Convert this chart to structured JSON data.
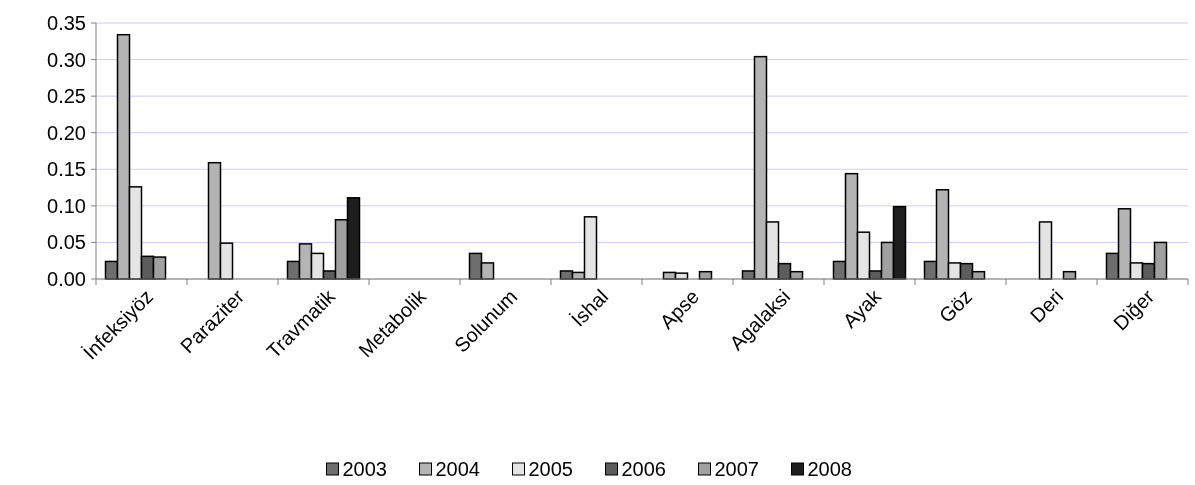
{
  "chart_data": {
    "type": "bar",
    "categories": [
      "İnfeksiyöz",
      "Paraziter",
      "Travmatik",
      "Metabolik",
      "Solunum",
      "İshal",
      "Apse",
      "Agalaksi",
      "Ayak",
      "Göz",
      "Deri",
      "Diğer"
    ],
    "series": [
      {
        "name": "2003",
        "color": "#6e6e6e",
        "values": [
          0.024,
          null,
          0.024,
          null,
          0.035,
          0.011,
          null,
          0.011,
          0.024,
          0.024,
          null,
          0.035
        ]
      },
      {
        "name": "2004",
        "color": "#b4b4b4",
        "values": [
          0.334,
          0.159,
          0.048,
          null,
          0.022,
          0.009,
          0.009,
          0.304,
          0.144,
          0.122,
          null,
          0.096
        ]
      },
      {
        "name": "2005",
        "color": "#e4e4e4",
        "values": [
          0.126,
          0.049,
          0.035,
          null,
          null,
          0.085,
          0.008,
          0.078,
          0.064,
          0.022,
          0.078,
          0.022
        ]
      },
      {
        "name": "2006",
        "color": "#5c5c5c",
        "values": [
          0.031,
          null,
          0.011,
          null,
          null,
          null,
          null,
          0.021,
          0.011,
          0.021,
          null,
          0.021
        ]
      },
      {
        "name": "2007",
        "color": "#a0a0a0",
        "values": [
          0.03,
          null,
          0.081,
          null,
          null,
          null,
          0.01,
          0.01,
          0.05,
          0.01,
          0.01,
          0.05
        ]
      },
      {
        "name": "2008",
        "color": "#1e1e1e",
        "values": [
          null,
          null,
          0.111,
          null,
          null,
          null,
          null,
          null,
          0.099,
          null,
          null,
          null
        ]
      }
    ],
    "ylim": [
      0,
      0.35
    ],
    "yticks": [
      {
        "value": 0,
        "label": "0.00"
      },
      {
        "value": 0.05,
        "label": "0.05"
      },
      {
        "value": 0.1,
        "label": "0.10"
      },
      {
        "value": 0.15,
        "label": "0.15"
      },
      {
        "value": 0.2,
        "label": "0.20"
      },
      {
        "value": 0.25,
        "label": "0.25"
      },
      {
        "value": 0.3,
        "label": "0.30"
      },
      {
        "value": 0.35,
        "label": "0.35"
      }
    ],
    "grid": "y",
    "legend": "bottom"
  }
}
